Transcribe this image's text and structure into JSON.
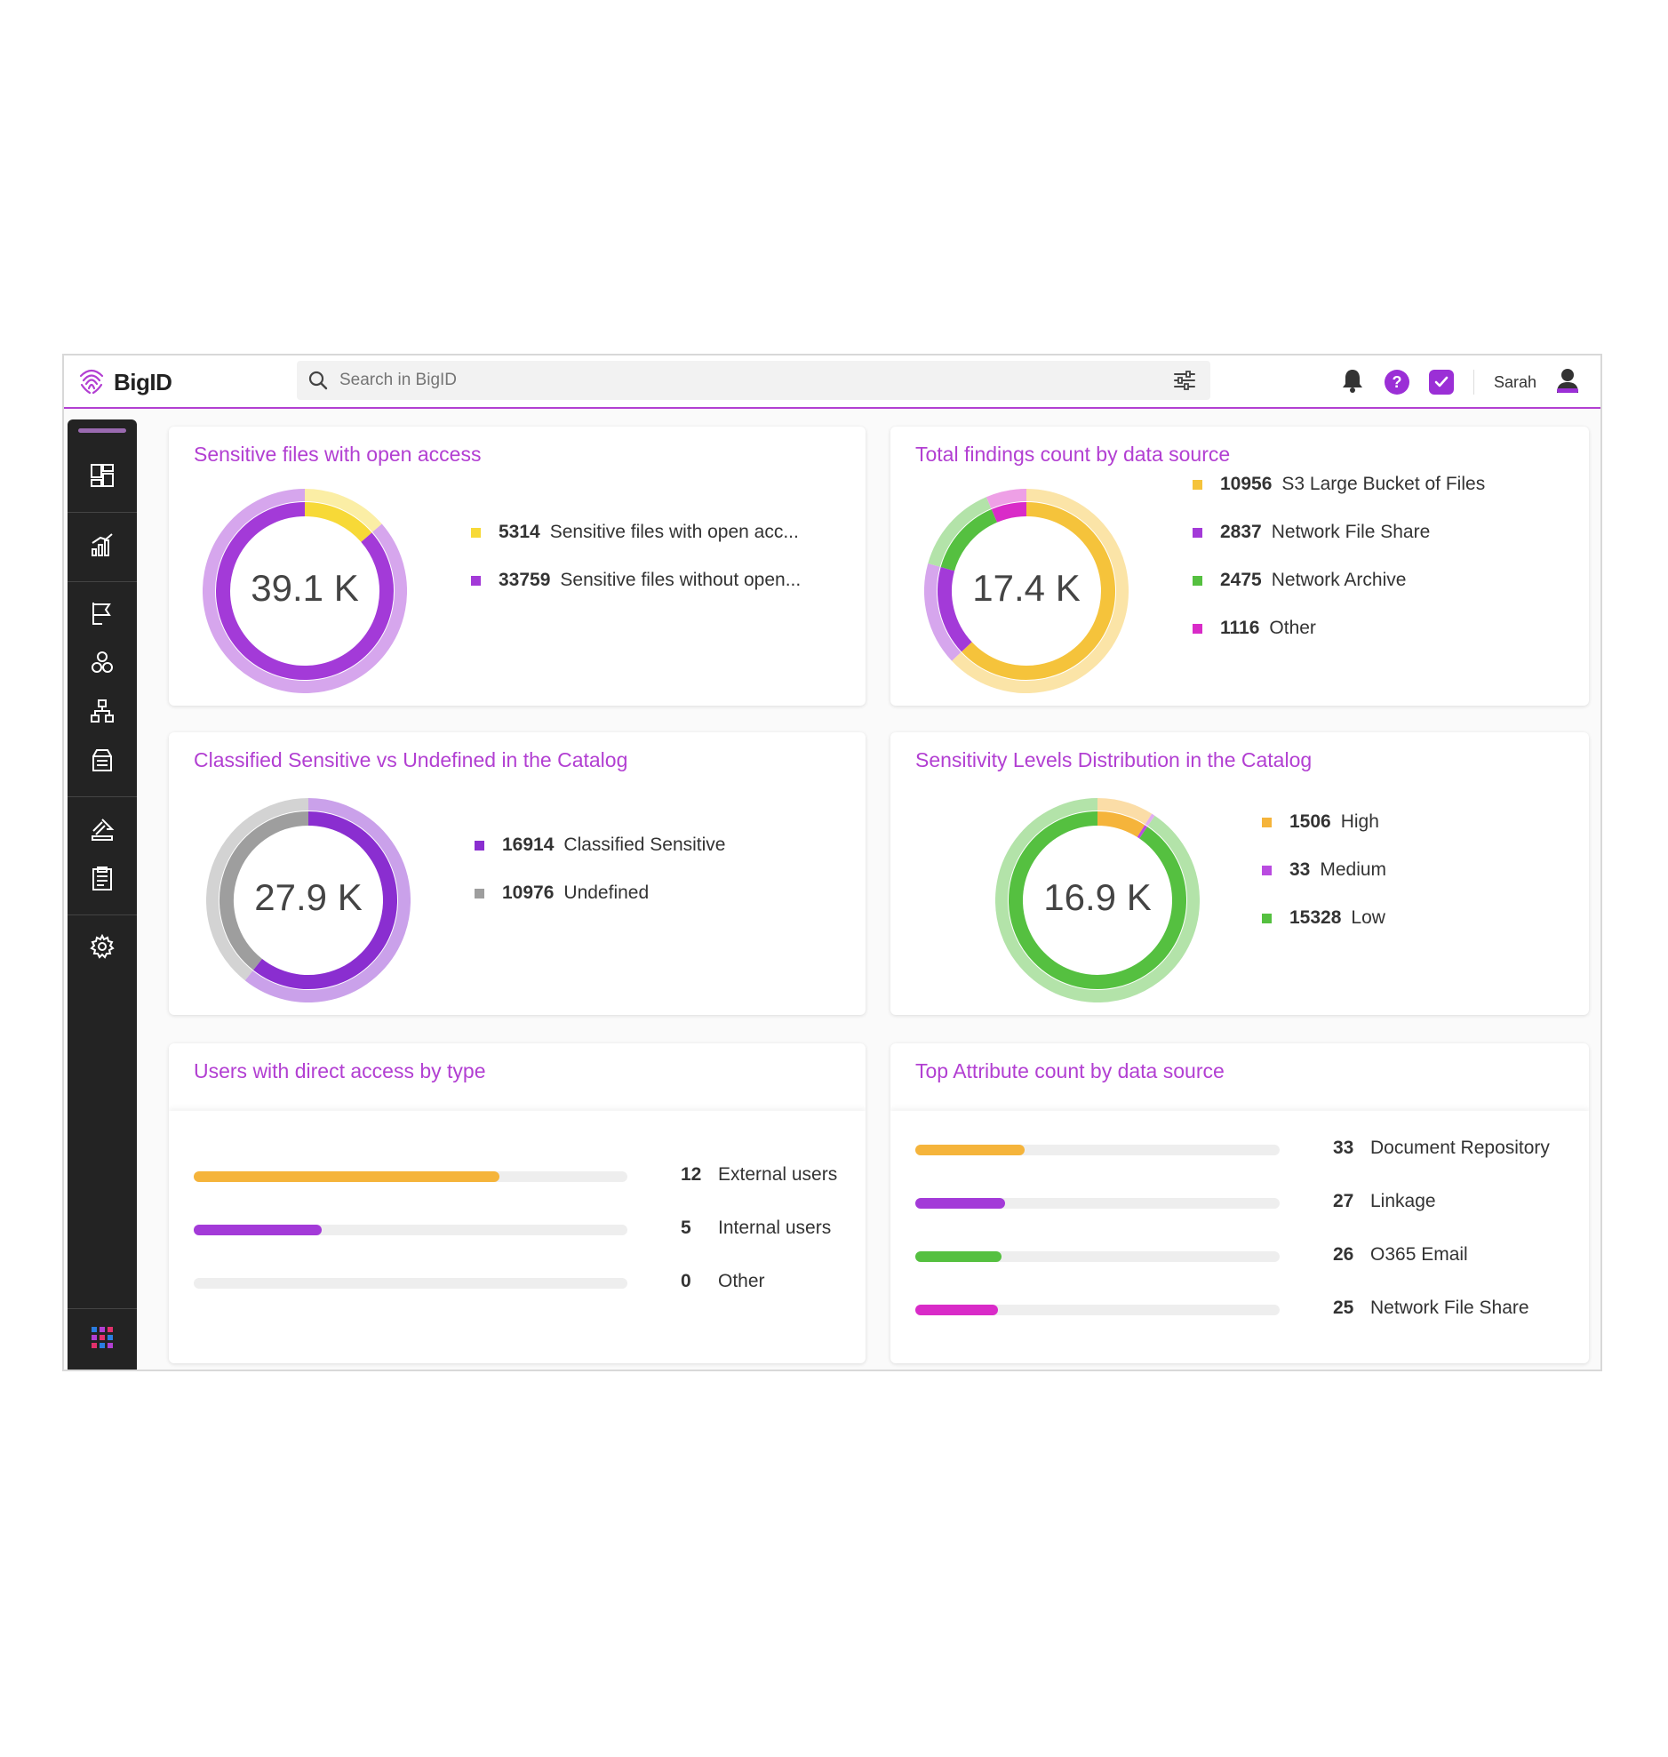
{
  "header": {
    "logo_text": "BigID",
    "search_placeholder": "Search in BigID",
    "user_name": "Sarah",
    "help_label": "?"
  },
  "sidebar": {
    "icons": [
      "dashboard-icon",
      "analytics-icon",
      "flag-icon",
      "clusters-icon",
      "hierarchy-icon",
      "catalog-icon",
      "remediation-icon",
      "reports-icon",
      "settings-icon",
      "apps-grid-icon"
    ]
  },
  "cards": {
    "open_access": {
      "title": "Sensitive files with open access",
      "total": "39.1 K",
      "legend": [
        {
          "value": "5314",
          "label": "Sensitive files with open acc...",
          "color": "#f7d937"
        },
        {
          "value": "33759",
          "label": "Sensitive files without open...",
          "color": "#a33ad8"
        }
      ]
    },
    "findings": {
      "title": "Total findings count by data source",
      "total": "17.4 K",
      "legend": [
        {
          "value": "10956",
          "label": "S3 Large Bucket of Files",
          "color": "#f5c33b"
        },
        {
          "value": "2837",
          "label": "Network File Share",
          "color": "#a33ad8"
        },
        {
          "value": "2475",
          "label": "Network Archive",
          "color": "#55c040"
        },
        {
          "value": "1116",
          "label": "Other",
          "color": "#d92bc8"
        }
      ]
    },
    "classified": {
      "title": "Classified Sensitive vs Undefined in the Catalog",
      "total": "27.9 K",
      "legend": [
        {
          "value": "16914",
          "label": "Classified Sensitive",
          "color": "#8a2ed0"
        },
        {
          "value": "10976",
          "label": "Undefined",
          "color": "#9e9e9e"
        }
      ]
    },
    "sensitivity": {
      "title": "Sensitivity Levels Distribution in the Catalog",
      "total": "16.9 K",
      "legend": [
        {
          "value": "1506",
          "label": "High",
          "color": "#f5b43b"
        },
        {
          "value": "33",
          "label": "Medium",
          "color": "#b94be0"
        },
        {
          "value": "15328",
          "label": "Low",
          "color": "#55c040"
        }
      ]
    },
    "users": {
      "title": "Users with direct access by type",
      "max": 17,
      "bars": [
        {
          "value": "12",
          "label": "External users",
          "color": "#f5b43b"
        },
        {
          "value": "5",
          "label": "Internal users",
          "color": "#a33ad8"
        },
        {
          "value": "0",
          "label": "Other",
          "color": "#cccccc"
        }
      ]
    },
    "attributes": {
      "title": "Top Attribute count by data source",
      "max": 110,
      "bars": [
        {
          "value": "33",
          "label": "Document Repository",
          "color": "#f5b43b"
        },
        {
          "value": "27",
          "label": "Linkage",
          "color": "#a33ad8"
        },
        {
          "value": "26",
          "label": "O365 Email",
          "color": "#55c040"
        },
        {
          "value": "25",
          "label": "Network File Share",
          "color": "#d92bc8"
        }
      ]
    }
  },
  "chart_data": [
    {
      "type": "pie",
      "title": "Sensitive files with open access",
      "center_label": "39.1 K",
      "categories": [
        "Sensitive files with open acc...",
        "Sensitive files without open..."
      ],
      "values": [
        5314,
        33759
      ]
    },
    {
      "type": "pie",
      "title": "Total findings count by data source",
      "center_label": "17.4 K",
      "categories": [
        "S3 Large Bucket of Files",
        "Network File Share",
        "Network Archive",
        "Other"
      ],
      "values": [
        10956,
        2837,
        2475,
        1116
      ]
    },
    {
      "type": "pie",
      "title": "Classified Sensitive vs Undefined in the Catalog",
      "center_label": "27.9 K",
      "categories": [
        "Classified Sensitive",
        "Undefined"
      ],
      "values": [
        16914,
        10976
      ]
    },
    {
      "type": "pie",
      "title": "Sensitivity Levels Distribution in the Catalog",
      "center_label": "16.9 K",
      "categories": [
        "High",
        "Medium",
        "Low"
      ],
      "values": [
        1506,
        33,
        15328
      ]
    },
    {
      "type": "bar",
      "title": "Users with direct access by type",
      "categories": [
        "External users",
        "Internal users",
        "Other"
      ],
      "values": [
        12,
        5,
        0
      ]
    },
    {
      "type": "bar",
      "title": "Top Attribute count by data source",
      "categories": [
        "Document Repository",
        "Linkage",
        "O365 Email",
        "Network File Share"
      ],
      "values": [
        33,
        27,
        26,
        25
      ]
    }
  ]
}
